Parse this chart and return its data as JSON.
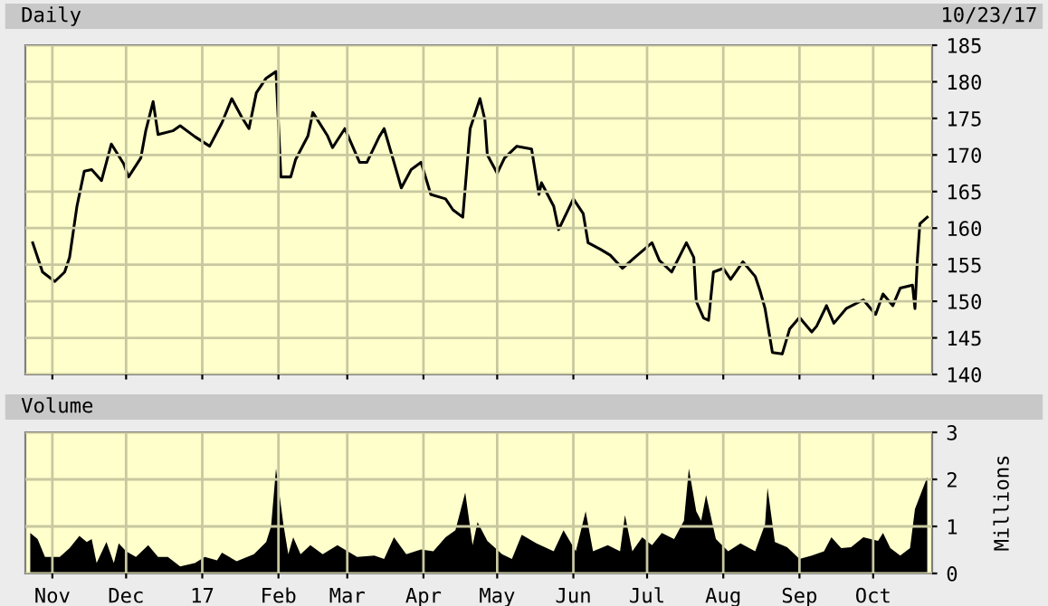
{
  "chart_data": [
    {
      "type": "line",
      "title": "Daily",
      "subtitle": "10/23/17",
      "grid": true,
      "tick_labels": "y",
      "legend": false,
      "xlim": [
        "2016-10-21",
        "2017-10-25"
      ],
      "xticks": [
        {
          "value": "2016-11-01",
          "label": null
        },
        {
          "value": "2016-12-01",
          "label": null
        },
        {
          "value": "2017-01-01",
          "label": null
        },
        {
          "value": "2017-02-01",
          "label": null
        },
        {
          "value": "2017-03-01",
          "label": null
        },
        {
          "value": "2017-04-01",
          "label": null
        },
        {
          "value": "2017-05-01",
          "label": null
        },
        {
          "value": "2017-06-01",
          "label": null
        },
        {
          "value": "2017-07-01",
          "label": null
        },
        {
          "value": "2017-08-01",
          "label": null
        },
        {
          "value": "2017-09-01",
          "label": null
        },
        {
          "value": "2017-10-01",
          "label": null
        }
      ],
      "ylim": [
        140,
        185
      ],
      "yticks": [
        140,
        145,
        150,
        155,
        160,
        165,
        170,
        175,
        180,
        185
      ],
      "series": [
        {
          "color": "#000000",
          "x": [
            "2016-10-24",
            "2016-10-28",
            "2016-11-02",
            "2016-11-06",
            "2016-11-08",
            "2016-11-11",
            "2016-11-14",
            "2016-11-17",
            "2016-11-21",
            "2016-11-23",
            "2016-11-25",
            "2016-11-30",
            "2016-12-02",
            "2016-12-07",
            "2016-12-09",
            "2016-12-12",
            "2016-12-14",
            "2016-12-20",
            "2016-12-23",
            "2016-12-29",
            "2017-01-04",
            "2017-01-09",
            "2017-01-13",
            "2017-01-17",
            "2017-01-20",
            "2017-01-23",
            "2017-01-27",
            "2017-01-31",
            "2017-02-02",
            "2017-02-06",
            "2017-02-08",
            "2017-02-13",
            "2017-02-15",
            "2017-02-21",
            "2017-02-23",
            "2017-02-28",
            "2017-03-06",
            "2017-03-09",
            "2017-03-14",
            "2017-03-16",
            "2017-03-20",
            "2017-03-23",
            "2017-03-27",
            "2017-03-31",
            "2017-04-04",
            "2017-04-10",
            "2017-04-13",
            "2017-04-17",
            "2017-04-20",
            "2017-04-24",
            "2017-04-26",
            "2017-04-27",
            "2017-05-01",
            "2017-05-04",
            "2017-05-09",
            "2017-05-15",
            "2017-05-18",
            "2017-05-19",
            "2017-05-24",
            "2017-05-26",
            "2017-06-01",
            "2017-06-05",
            "2017-06-07",
            "2017-06-12",
            "2017-06-16",
            "2017-06-21",
            "2017-06-26",
            "2017-07-03",
            "2017-07-06",
            "2017-07-11",
            "2017-07-17",
            "2017-07-20",
            "2017-07-21",
            "2017-07-24",
            "2017-07-26",
            "2017-07-28",
            "2017-08-01",
            "2017-08-04",
            "2017-08-09",
            "2017-08-14",
            "2017-08-16",
            "2017-08-18",
            "2017-08-21",
            "2017-08-25",
            "2017-08-28",
            "2017-09-01",
            "2017-09-06",
            "2017-09-08",
            "2017-09-12",
            "2017-09-15",
            "2017-09-20",
            "2017-09-27",
            "2017-10-02",
            "2017-10-05",
            "2017-10-09",
            "2017-10-12",
            "2017-10-17",
            "2017-10-18",
            "2017-10-19",
            "2017-10-20",
            "2017-10-23"
          ],
          "values": [
            158,
            154,
            152.7,
            154,
            156,
            163,
            167.8,
            168,
            166.5,
            169,
            171.5,
            168.8,
            167,
            169.6,
            173.3,
            177.3,
            172.8,
            173.3,
            174,
            172.5,
            171.2,
            174.4,
            177.7,
            175.2,
            173.6,
            178.5,
            180.5,
            181.4,
            167,
            167,
            169.4,
            172.6,
            175.8,
            172.6,
            171,
            173.6,
            169,
            169,
            172.5,
            173.6,
            169,
            165.5,
            168,
            169,
            164.6,
            164,
            162.5,
            161.5,
            173.6,
            177.7,
            174.8,
            170,
            167.5,
            169.6,
            171.2,
            170.8,
            164.6,
            166.2,
            163,
            159.8,
            164,
            162,
            158,
            157.1,
            156.3,
            154.5,
            156,
            158,
            155.6,
            154,
            158,
            156,
            150,
            147.7,
            147.4,
            154,
            154.5,
            153,
            155.4,
            153.4,
            151.4,
            149,
            143,
            142.8,
            146.2,
            147.8,
            145.8,
            146.6,
            149.4,
            147,
            149,
            150.2,
            148.2,
            151,
            149.4,
            151.8,
            152.2,
            149,
            155.8,
            160.6,
            161.5
          ]
        }
      ]
    },
    {
      "type": "area",
      "title": "Volume",
      "ylabel": "Millions",
      "grid": true,
      "legend": false,
      "xlim": [
        "2016-10-21",
        "2017-10-25"
      ],
      "xticks": [
        {
          "value": "2016-11-01",
          "label": "Nov"
        },
        {
          "value": "2016-12-01",
          "label": "Dec"
        },
        {
          "value": "2017-01-01",
          "label": "17"
        },
        {
          "value": "2017-02-01",
          "label": "Feb"
        },
        {
          "value": "2017-03-01",
          "label": "Mar"
        },
        {
          "value": "2017-04-01",
          "label": "Apr"
        },
        {
          "value": "2017-05-01",
          "label": "May"
        },
        {
          "value": "2017-06-01",
          "label": "Jun"
        },
        {
          "value": "2017-07-01",
          "label": "Jul"
        },
        {
          "value": "2017-08-01",
          "label": "Aug"
        },
        {
          "value": "2017-09-01",
          "label": "Sep"
        },
        {
          "value": "2017-10-01",
          "label": "Oct"
        }
      ],
      "ylim": [
        0,
        3
      ],
      "yticks": [
        0,
        1,
        2,
        3
      ],
      "series": [
        {
          "color": "#000000",
          "x": [
            "2016-10-23",
            "2016-10-26",
            "2016-10-29",
            "2016-11-04",
            "2016-11-08",
            "2016-11-12",
            "2016-11-15",
            "2016-11-17",
            "2016-11-19",
            "2016-11-23",
            "2016-11-26",
            "2016-11-28",
            "2016-12-01",
            "2016-12-05",
            "2016-12-10",
            "2016-12-14",
            "2016-12-18",
            "2016-12-23",
            "2016-12-29",
            "2017-01-02",
            "2017-01-07",
            "2017-01-09",
            "2017-01-15",
            "2017-01-22",
            "2017-01-27",
            "2017-01-29",
            "2017-01-31",
            "2017-02-03",
            "2017-02-05",
            "2017-02-07",
            "2017-02-10",
            "2017-02-14",
            "2017-02-19",
            "2017-02-25",
            "2017-03-05",
            "2017-03-12",
            "2017-03-16",
            "2017-03-20",
            "2017-03-25",
            "2017-03-31",
            "2017-04-05",
            "2017-04-10",
            "2017-04-14",
            "2017-04-18",
            "2017-04-21",
            "2017-04-23",
            "2017-04-27",
            "2017-05-03",
            "2017-05-07",
            "2017-05-11",
            "2017-05-17",
            "2017-05-24",
            "2017-05-28",
            "2017-06-02",
            "2017-06-06",
            "2017-06-09",
            "2017-06-15",
            "2017-06-20",
            "2017-06-22",
            "2017-06-25",
            "2017-06-29",
            "2017-07-03",
            "2017-07-07",
            "2017-07-12",
            "2017-07-16",
            "2017-07-18",
            "2017-07-21",
            "2017-07-23",
            "2017-07-25",
            "2017-07-29",
            "2017-08-03",
            "2017-08-08",
            "2017-08-14",
            "2017-08-18",
            "2017-08-19",
            "2017-08-22",
            "2017-08-27",
            "2017-09-01",
            "2017-09-06",
            "2017-09-11",
            "2017-09-14",
            "2017-09-18",
            "2017-09-22",
            "2017-09-27",
            "2017-10-03",
            "2017-10-05",
            "2017-10-08",
            "2017-10-12",
            "2017-10-16",
            "2017-10-18",
            "2017-10-23"
          ],
          "values": [
            0.86,
            0.73,
            0.35,
            0.35,
            0.54,
            0.8,
            0.67,
            0.73,
            0.22,
            0.67,
            0.22,
            0.64,
            0.47,
            0.35,
            0.6,
            0.35,
            0.35,
            0.15,
            0.22,
            0.35,
            0.28,
            0.44,
            0.26,
            0.41,
            0.67,
            1.0,
            2.23,
            1.05,
            0.41,
            0.77,
            0.41,
            0.6,
            0.41,
            0.6,
            0.35,
            0.38,
            0.31,
            0.77,
            0.41,
            0.51,
            0.47,
            0.77,
            0.92,
            1.72,
            0.6,
            1.09,
            0.69,
            0.41,
            0.31,
            0.82,
            0.64,
            0.47,
            0.92,
            0.47,
            1.32,
            0.47,
            0.6,
            0.47,
            1.24,
            0.47,
            0.77,
            0.6,
            0.86,
            0.73,
            1.12,
            2.23,
            1.32,
            1.12,
            1.67,
            0.73,
            0.47,
            0.64,
            0.47,
            1.05,
            1.82,
            0.67,
            0.56,
            0.31,
            0.38,
            0.47,
            0.77,
            0.54,
            0.56,
            0.77,
            0.69,
            0.86,
            0.54,
            0.38,
            0.54,
            1.37,
            2.05
          ]
        }
      ]
    }
  ]
}
